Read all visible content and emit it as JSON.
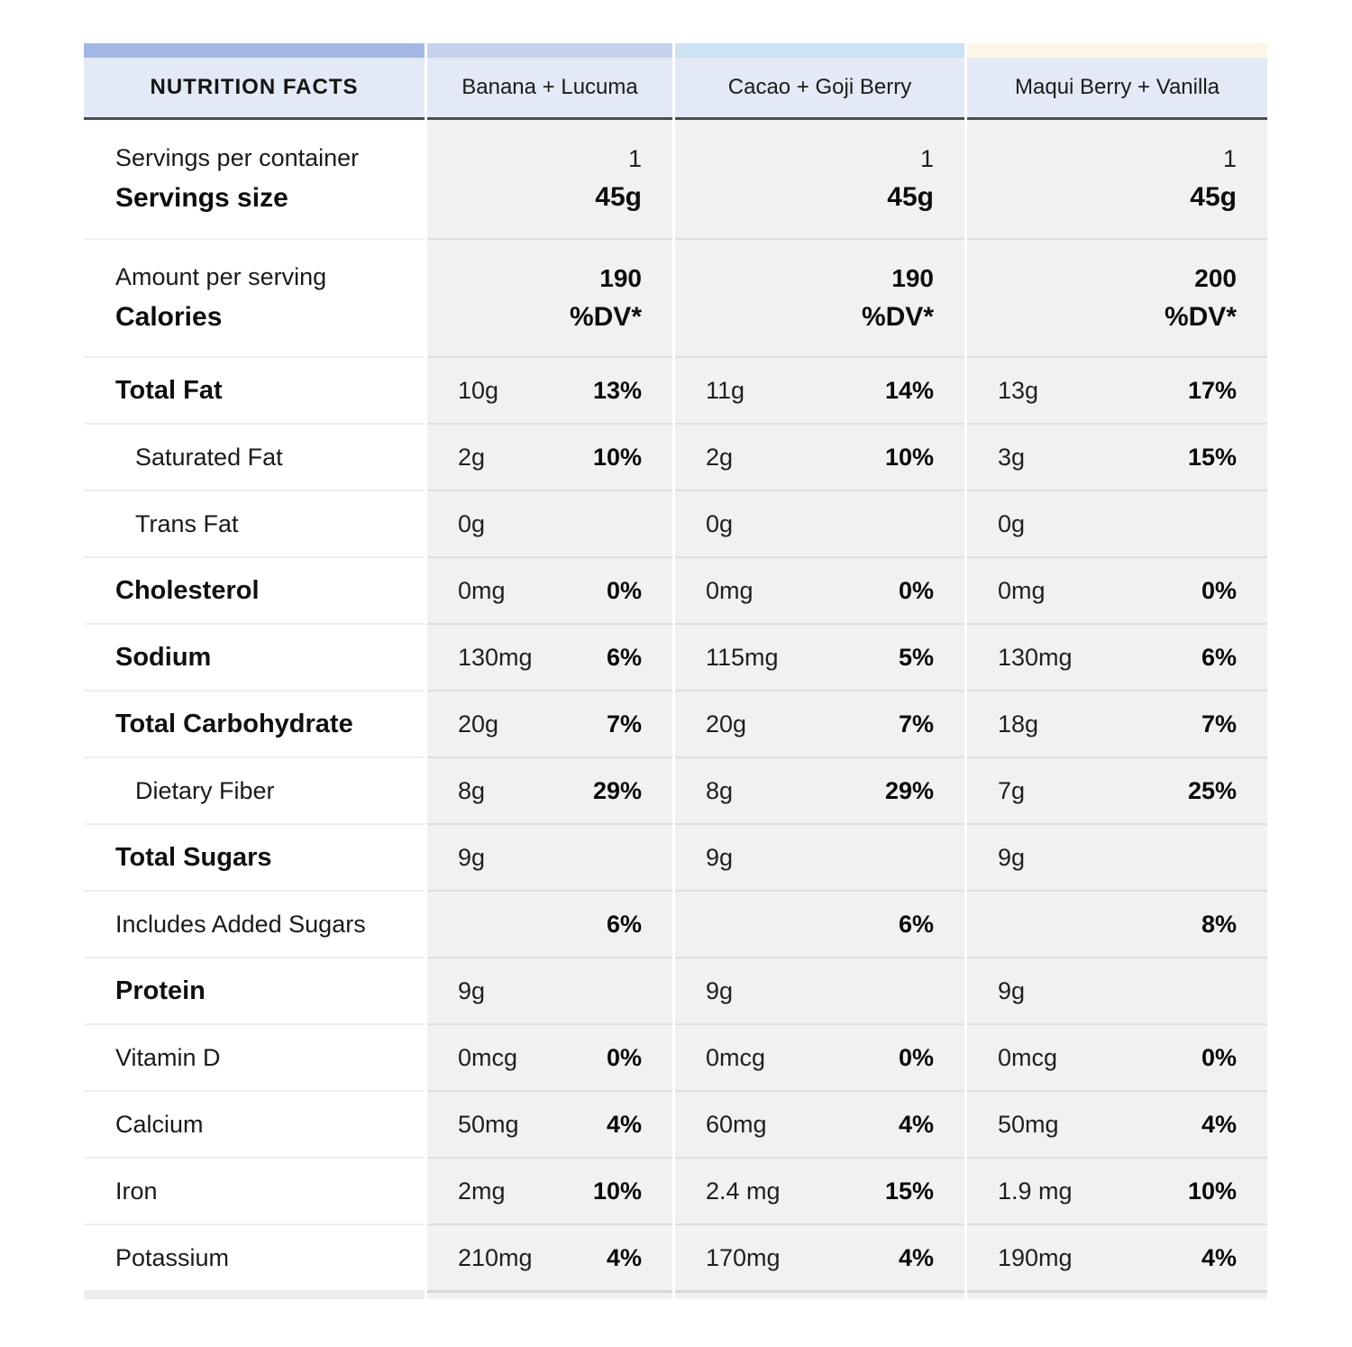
{
  "header": {
    "title": "NUTRITION FACTS",
    "products": [
      "Banana + Lucuma",
      "Cacao + Goji Berry",
      "Maqui Berry + Vanilla"
    ]
  },
  "colors": {
    "label_strip": "#a3b7e6",
    "product_strips": [
      "#c5d2ee",
      "#cde2f2",
      "#fbf6e7"
    ],
    "header_bg": "#e4e9f6",
    "header_border": "#4d4d4d",
    "value_cell_bg": "#f1f1f1"
  },
  "serving_row": {
    "label_top": "Servings per container",
    "label_bottom": "Servings size",
    "values": [
      {
        "top": "1",
        "bottom": "45g"
      },
      {
        "top": "1",
        "bottom": "45g"
      },
      {
        "top": "1",
        "bottom": "45g"
      }
    ]
  },
  "calorie_row": {
    "label_top": "Amount per serving",
    "label_bottom": "Calories",
    "values": [
      {
        "top": "190",
        "bottom": "%DV*"
      },
      {
        "top": "190",
        "bottom": "%DV*"
      },
      {
        "top": "200",
        "bottom": "%DV*"
      }
    ]
  },
  "rows": [
    {
      "label": "Total Fat",
      "style": "bold",
      "cells": [
        {
          "amount": "10g",
          "dv": "13%"
        },
        {
          "amount": "11g",
          "dv": "14%"
        },
        {
          "amount": "13g",
          "dv": "17%"
        }
      ]
    },
    {
      "label": "Saturated Fat",
      "style": "indent",
      "cells": [
        {
          "amount": "2g",
          "dv": "10%"
        },
        {
          "amount": "2g",
          "dv": "10%"
        },
        {
          "amount": "3g",
          "dv": "15%"
        }
      ]
    },
    {
      "label": "Trans Fat",
      "style": "indent",
      "cells": [
        {
          "amount": "0g",
          "dv": ""
        },
        {
          "amount": "0g",
          "dv": ""
        },
        {
          "amount": "0g",
          "dv": ""
        }
      ]
    },
    {
      "label": "Cholesterol",
      "style": "bold",
      "cells": [
        {
          "amount": "0mg",
          "dv": "0%"
        },
        {
          "amount": "0mg",
          "dv": "0%"
        },
        {
          "amount": "0mg",
          "dv": "0%"
        }
      ]
    },
    {
      "label": "Sodium",
      "style": "bold",
      "cells": [
        {
          "amount": "130mg",
          "dv": "6%"
        },
        {
          "amount": "115mg",
          "dv": "5%"
        },
        {
          "amount": "130mg",
          "dv": "6%"
        }
      ]
    },
    {
      "label": "Total Carbohydrate",
      "style": "bold",
      "cells": [
        {
          "amount": "20g",
          "dv": "7%"
        },
        {
          "amount": "20g",
          "dv": "7%"
        },
        {
          "amount": "18g",
          "dv": "7%"
        }
      ]
    },
    {
      "label": "Dietary Fiber",
      "style": "indent",
      "cells": [
        {
          "amount": "8g",
          "dv": "29%"
        },
        {
          "amount": "8g",
          "dv": "29%"
        },
        {
          "amount": "7g",
          "dv": "25%"
        }
      ]
    },
    {
      "label": "Total Sugars",
      "style": "bold",
      "cells": [
        {
          "amount": "9g",
          "dv": ""
        },
        {
          "amount": "9g",
          "dv": ""
        },
        {
          "amount": "9g",
          "dv": ""
        }
      ]
    },
    {
      "label": "Includes Added Sugars",
      "style": "plain",
      "cells": [
        {
          "amount": "",
          "dv": "6%"
        },
        {
          "amount": "",
          "dv": "6%"
        },
        {
          "amount": "",
          "dv": "8%"
        }
      ]
    },
    {
      "label": "Protein",
      "style": "bold",
      "cells": [
        {
          "amount": "9g",
          "dv": ""
        },
        {
          "amount": "9g",
          "dv": ""
        },
        {
          "amount": "9g",
          "dv": ""
        }
      ]
    },
    {
      "label": "Vitamin D",
      "style": "plain",
      "cells": [
        {
          "amount": "0mcg",
          "dv": "0%"
        },
        {
          "amount": "0mcg",
          "dv": "0%"
        },
        {
          "amount": "0mcg",
          "dv": "0%"
        }
      ]
    },
    {
      "label": "Calcium",
      "style": "plain",
      "cells": [
        {
          "amount": "50mg",
          "dv": "4%"
        },
        {
          "amount": "60mg",
          "dv": "4%"
        },
        {
          "amount": "50mg",
          "dv": "4%"
        }
      ]
    },
    {
      "label": "Iron",
      "style": "plain",
      "cells": [
        {
          "amount": "2mg",
          "dv": "10%"
        },
        {
          "amount": "2.4 mg",
          "dv": "15%"
        },
        {
          "amount": "1.9 mg",
          "dv": "10%"
        }
      ]
    },
    {
      "label": "Potassium",
      "style": "plain",
      "cells": [
        {
          "amount": "210mg",
          "dv": "4%"
        },
        {
          "amount": "170mg",
          "dv": "4%"
        },
        {
          "amount": "190mg",
          "dv": "4%"
        }
      ]
    }
  ]
}
